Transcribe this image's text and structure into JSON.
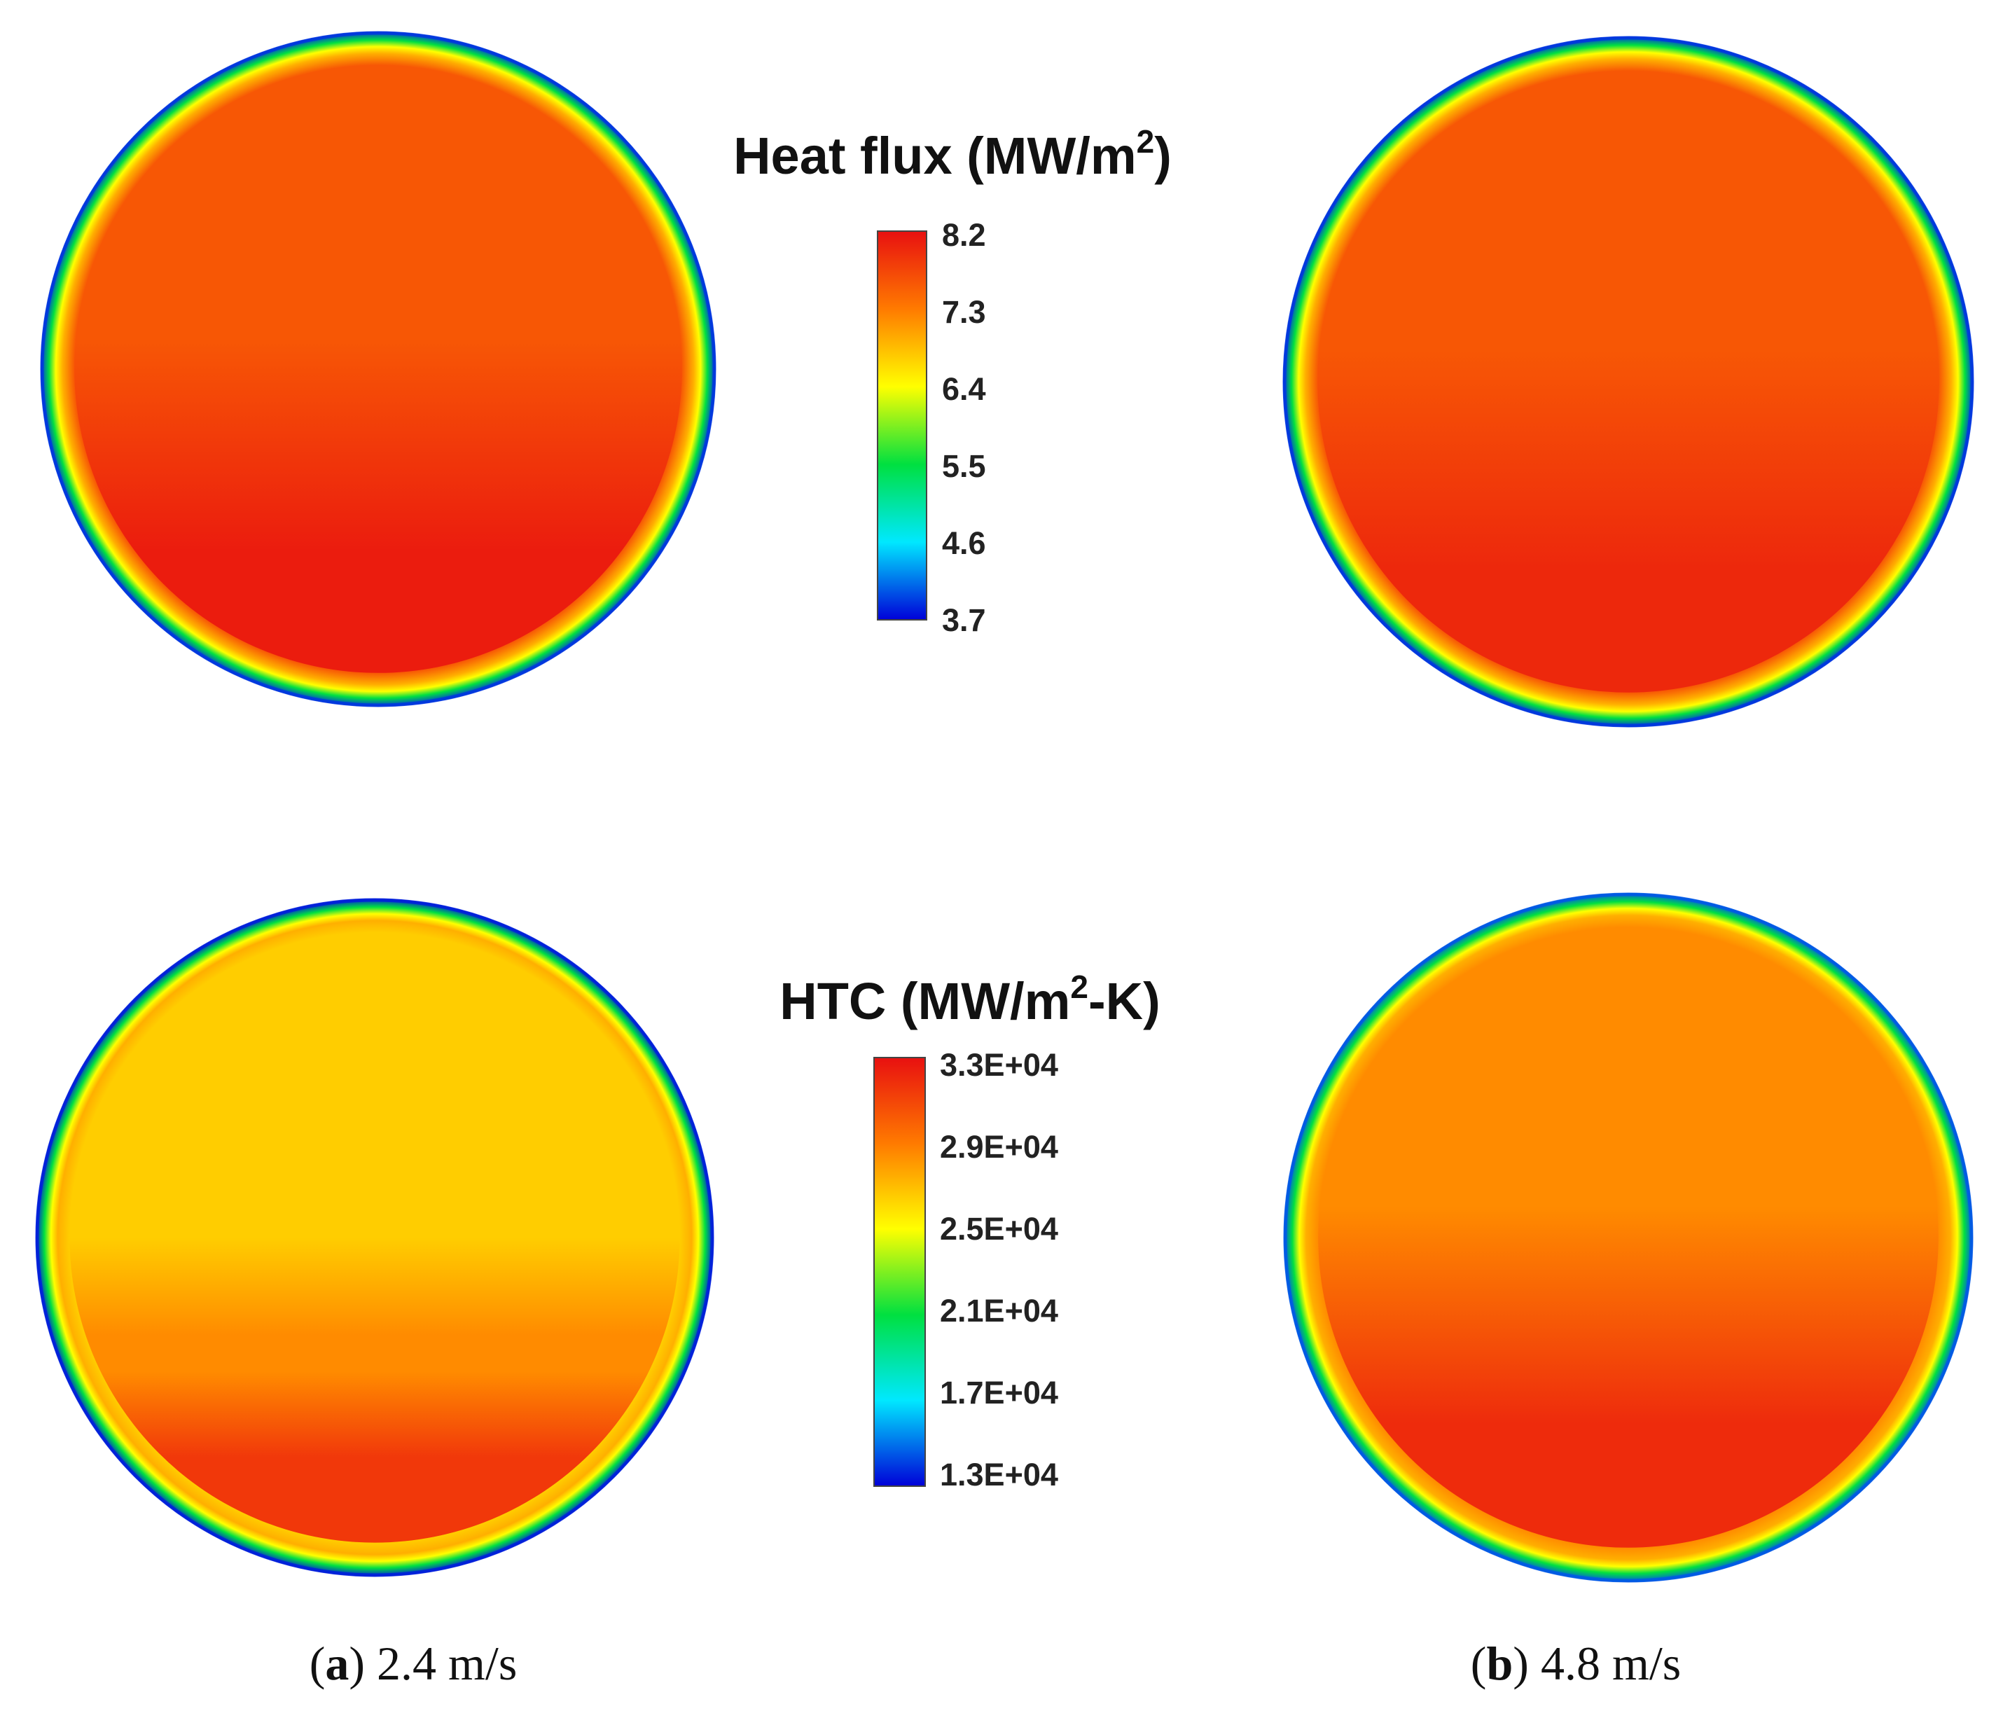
{
  "chart_data": [
    {
      "type": "heatmap",
      "title": "Heat flux (MW/m²)",
      "title_main": "Heat flux (MW/m",
      "title_sup": "2",
      "title_end": ")",
      "colorbar": {
        "min": 3.7,
        "max": 8.2,
        "ticks": [
          "8.2",
          "7.3",
          "6.4",
          "5.5",
          "4.6",
          "3.7"
        ]
      },
      "panels": [
        {
          "panel": "a",
          "caption": "2.4 m/s",
          "core_value": 7.6,
          "zones": [
            {
              "zone": "rim",
              "value": 3.9
            },
            {
              "zone": "wall-gradient",
              "value": 5.5
            },
            {
              "zone": "upper-core",
              "value": 7.6
            },
            {
              "zone": "lower-band",
              "value": 8.1
            }
          ]
        },
        {
          "panel": "b",
          "caption": "4.8 m/s",
          "core_value": 7.6,
          "zones": [
            {
              "zone": "rim",
              "value": 3.9
            },
            {
              "zone": "wall-gradient",
              "value": 5.5
            },
            {
              "zone": "upper-core",
              "value": 7.6
            },
            {
              "zone": "lower-band",
              "value": 8.0
            }
          ]
        }
      ]
    },
    {
      "type": "heatmap",
      "title": "HTC (MW/m²-K)",
      "title_main": "HTC (MW/m",
      "title_sup": "2",
      "title_end": "-K)",
      "colorbar": {
        "min": 13000,
        "max": 33000,
        "ticks": [
          "3.3E+04",
          "2.9E+04",
          "2.5E+04",
          "2.1E+04",
          "1.7E+04",
          "1.3E+04"
        ]
      },
      "panels": [
        {
          "panel": "a",
          "caption": "2.4 m/s",
          "core_value": 26500,
          "zones": [
            {
              "zone": "rim",
              "value": 13500
            },
            {
              "zone": "wall-gradient",
              "value": 21000
            },
            {
              "zone": "upper-core",
              "value": 26500
            },
            {
              "zone": "middle-band",
              "value": 28500
            },
            {
              "zone": "lower-band",
              "value": 31500
            }
          ]
        },
        {
          "panel": "b",
          "caption": "4.8 m/s",
          "core_value": 30000,
          "zones": [
            {
              "zone": "rim",
              "value": 14500
            },
            {
              "zone": "wall-gradient",
              "value": 21000
            },
            {
              "zone": "upper-core",
              "value": 28500
            },
            {
              "zone": "lower-band",
              "value": 32000
            }
          ]
        }
      ]
    }
  ],
  "captions": [
    {
      "label": "a",
      "text": "2.4 m/s"
    },
    {
      "label": "b",
      "text": "4.8 m/s"
    }
  ],
  "colorscale": [
    "#0000d8",
    "#00e8ff",
    "#00e040",
    "#ffff00",
    "#ff7a00",
    "#e81010"
  ]
}
